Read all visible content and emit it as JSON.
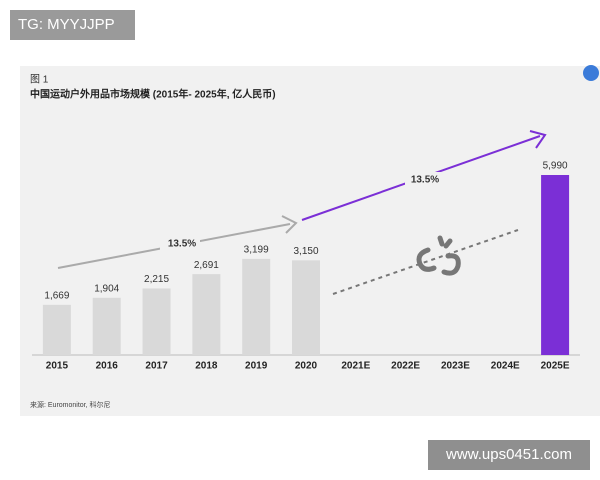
{
  "tag": "TG: MYYJJPP",
  "watermark": "www.ups0451.com",
  "chart_data": {
    "type": "bar",
    "title": "图 1",
    "subtitle": "中国运动户外用品市场规模 (2015年- 2025年, 亿人民币)",
    "categories": [
      "2015",
      "2016",
      "2017",
      "2018",
      "2019",
      "2020",
      "2021E",
      "2022E",
      "2023E",
      "2024E",
      "2025E"
    ],
    "values": [
      1669,
      1904,
      2215,
      2691,
      3199,
      3150,
      null,
      null,
      null,
      null,
      5990
    ],
    "value_labels": [
      "1,669",
      "1,904",
      "2,215",
      "2,691",
      "3,199",
      "3,150",
      null,
      null,
      null,
      null,
      "5,990"
    ],
    "colors": [
      "#d9d9d9",
      "#d9d9d9",
      "#d9d9d9",
      "#d9d9d9",
      "#d9d9d9",
      "#d9d9d9",
      null,
      null,
      null,
      null,
      "#7b2fd6"
    ],
    "ylim": [
      0,
      6000
    ],
    "annotations": [
      "13.5%",
      "13.5%"
    ],
    "source": "来源: Euromonitor, 科尔尼"
  }
}
